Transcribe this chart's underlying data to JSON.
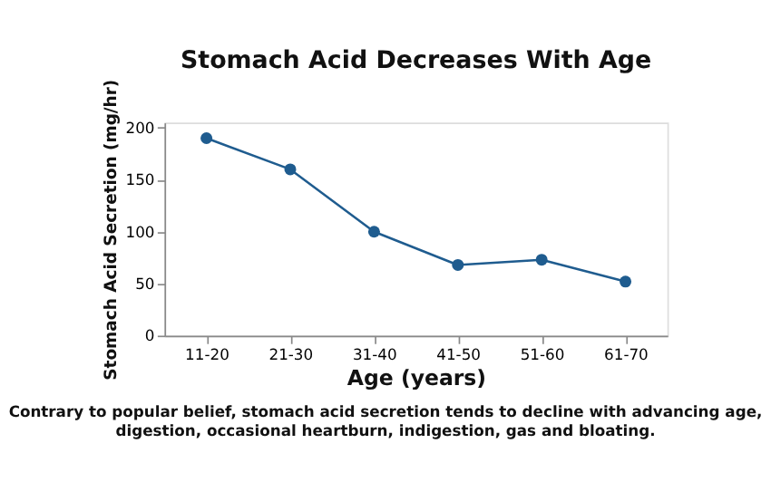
{
  "chart_data": {
    "type": "line",
    "title": "Stomach Acid Decreases With Age",
    "xlabel": "Age (years)",
    "ylabel": "Stomach Acid Secretion (mg/hr)",
    "categories": [
      "11-20",
      "21-30",
      "31-40",
      "41-50",
      "51-60",
      "61-70"
    ],
    "series": [
      {
        "color": "#1f5c8f",
        "values": [
          190,
          160,
          100,
          68,
          73,
          52
        ]
      }
    ],
    "ylim": [
      0,
      205
    ],
    "yticks": [
      0,
      50,
      100,
      150,
      200
    ],
    "grid": false,
    "marker": "circle",
    "line_style": "solid",
    "annotations": [
      "Contrary to popular belief, stomach acid secretion tends to decline with advancing age,",
      "digestion, occasional heartburn, indigestion, gas and bloating."
    ]
  }
}
